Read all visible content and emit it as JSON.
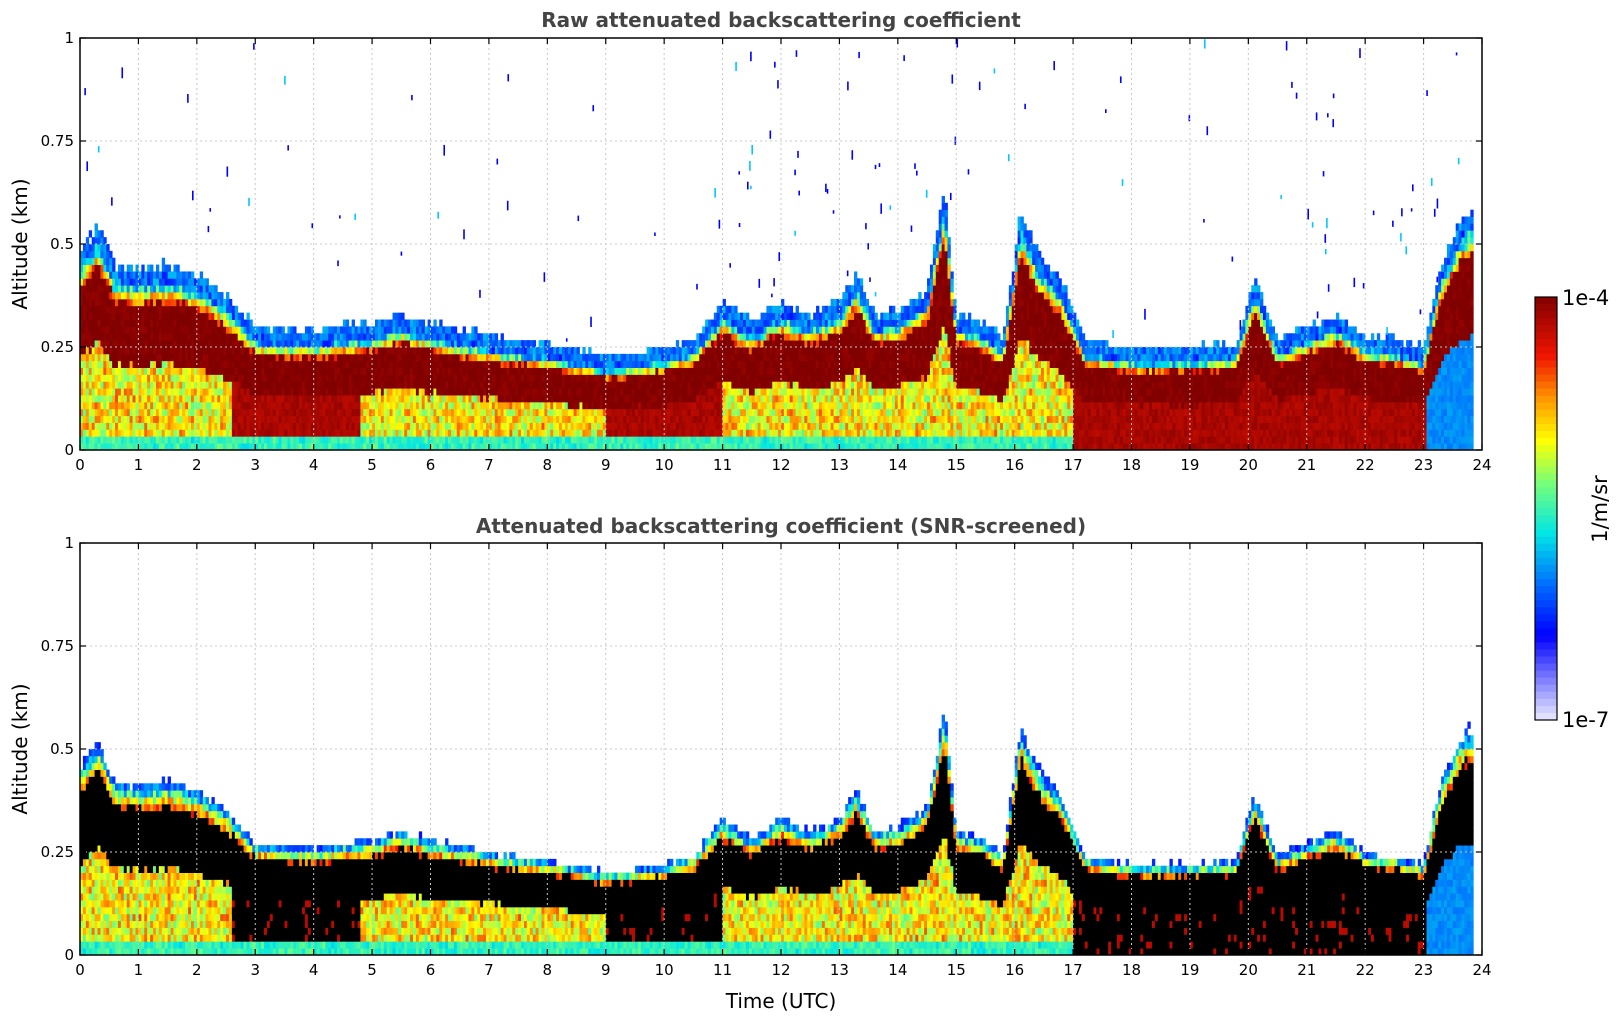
{
  "colors": {
    "grid": "#c8c8c8",
    "axes": "#000000",
    "title": "#444444",
    "screened_core": "#000000"
  },
  "colorbar": {
    "min_label": "1e-7",
    "max_label": "1e-4",
    "unit_label": "1/m/sr",
    "colormap": "jet-like (white to blue to cyan to yellow to red to dark red)"
  },
  "chart_data": [
    {
      "type": "heatmap",
      "title": "Raw attenuated backscattering coefficient",
      "xlabel": "",
      "ylabel": "Altitude (km)",
      "xlim": [
        0,
        24
      ],
      "ylim": [
        0,
        1
      ],
      "x_ticks": [
        "0",
        "1",
        "2",
        "3",
        "4",
        "5",
        "6",
        "7",
        "8",
        "9",
        "10",
        "11",
        "12",
        "13",
        "14",
        "15",
        "16",
        "17",
        "18",
        "19",
        "20",
        "21",
        "22",
        "23",
        "24"
      ],
      "y_ticks": [
        "0",
        "0.25",
        "0.5",
        "0.75",
        "1"
      ],
      "grid": true,
      "screened": false,
      "layer_top_km": [
        {
          "t": 0,
          "top": 0.45
        },
        {
          "t": 0.3,
          "top": 0.52
        },
        {
          "t": 0.6,
          "top": 0.42
        },
        {
          "t": 1.0,
          "top": 0.41
        },
        {
          "t": 1.5,
          "top": 0.42
        },
        {
          "t": 2.0,
          "top": 0.4
        },
        {
          "t": 2.5,
          "top": 0.35
        },
        {
          "t": 3.0,
          "top": 0.27
        },
        {
          "t": 4.0,
          "top": 0.26
        },
        {
          "t": 5.0,
          "top": 0.28
        },
        {
          "t": 5.5,
          "top": 0.3
        },
        {
          "t": 6.0,
          "top": 0.28
        },
        {
          "t": 7.0,
          "top": 0.25
        },
        {
          "t": 8.0,
          "top": 0.23
        },
        {
          "t": 9.0,
          "top": 0.2
        },
        {
          "t": 10.0,
          "top": 0.22
        },
        {
          "t": 10.5,
          "top": 0.24
        },
        {
          "t": 11.0,
          "top": 0.33
        },
        {
          "t": 11.5,
          "top": 0.28
        },
        {
          "t": 12.0,
          "top": 0.33
        },
        {
          "t": 12.5,
          "top": 0.3
        },
        {
          "t": 13.0,
          "top": 0.33
        },
        {
          "t": 13.3,
          "top": 0.4
        },
        {
          "t": 13.6,
          "top": 0.3
        },
        {
          "t": 14.0,
          "top": 0.31
        },
        {
          "t": 14.5,
          "top": 0.36
        },
        {
          "t": 14.8,
          "top": 0.6
        },
        {
          "t": 15.0,
          "top": 0.3
        },
        {
          "t": 15.5,
          "top": 0.28
        },
        {
          "t": 15.8,
          "top": 0.24
        },
        {
          "t": 16.1,
          "top": 0.55
        },
        {
          "t": 16.4,
          "top": 0.45
        },
        {
          "t": 16.8,
          "top": 0.38
        },
        {
          "t": 17.2,
          "top": 0.24
        },
        {
          "t": 18.0,
          "top": 0.22
        },
        {
          "t": 19.0,
          "top": 0.22
        },
        {
          "t": 19.8,
          "top": 0.23
        },
        {
          "t": 20.1,
          "top": 0.39
        },
        {
          "t": 20.5,
          "top": 0.24
        },
        {
          "t": 21.0,
          "top": 0.27
        },
        {
          "t": 21.5,
          "top": 0.3
        },
        {
          "t": 22.0,
          "top": 0.25
        },
        {
          "t": 22.5,
          "top": 0.24
        },
        {
          "t": 23.0,
          "top": 0.22
        },
        {
          "t": 23.3,
          "top": 0.42
        },
        {
          "t": 23.6,
          "top": 0.52
        },
        {
          "t": 23.8,
          "top": 0.55
        }
      ]
    },
    {
      "type": "heatmap",
      "title": "Attenuated backscattering coefficient (SNR-screened)",
      "xlabel": "Time (UTC)",
      "ylabel": "Altitude (km)",
      "xlim": [
        0,
        24
      ],
      "ylim": [
        0,
        1
      ],
      "x_ticks": [
        "0",
        "1",
        "2",
        "3",
        "4",
        "5",
        "6",
        "7",
        "8",
        "9",
        "10",
        "11",
        "12",
        "13",
        "14",
        "15",
        "16",
        "17",
        "18",
        "19",
        "20",
        "21",
        "22",
        "23",
        "24"
      ],
      "y_ticks": [
        "0",
        "0.25",
        "0.5",
        "0.75",
        "1"
      ],
      "grid": true,
      "screened": true
    }
  ]
}
